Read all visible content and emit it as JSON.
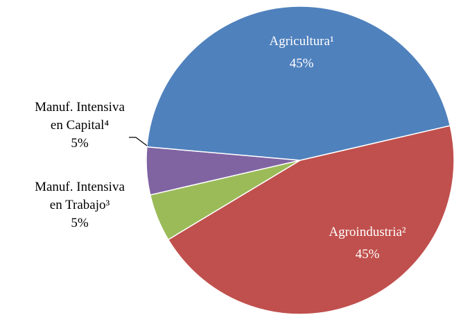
{
  "chart_data": {
    "type": "pie",
    "categories": [
      "Agroindustria²",
      "Manuf. Intensiva en Trabajo³",
      "Manuf. Intensiva en Capital⁴",
      "Agricultura¹"
    ],
    "values": [
      45,
      5,
      5,
      45
    ],
    "value_labels": [
      "45%",
      "5%",
      "5%",
      "45%"
    ],
    "colors": [
      "#c0504d",
      "#9bbb59",
      "#8064a2",
      "#4f81bd"
    ]
  }
}
